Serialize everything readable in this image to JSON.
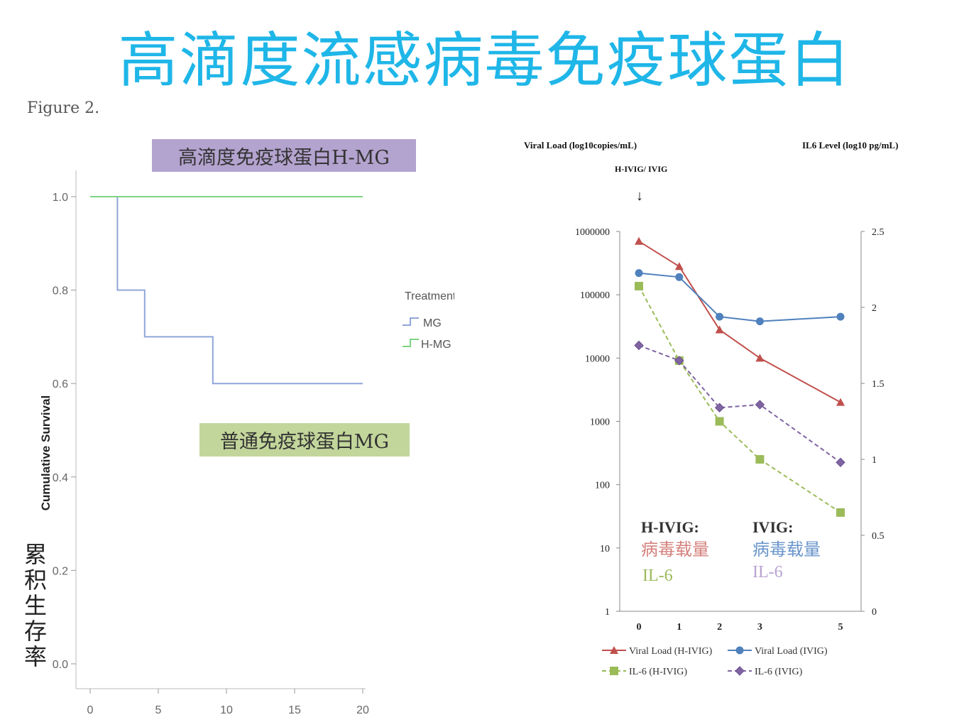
{
  "title": "高滴度流感病毒免疫球蛋白",
  "figure_label": "Figure 2.",
  "label_hmg": "高滴度免疫球蛋白H-MG",
  "label_mg": "普通免疫球蛋白MG",
  "y_label_cn_chars": [
    "累",
    "积",
    "生",
    "存",
    "率"
  ],
  "colors": {
    "title": "#1FB6E8",
    "mg": "#8FA6D9",
    "hmg": "#7FD383",
    "viral_hivig": "#C0504D",
    "viral_ivig": "#4F81BD",
    "il6_hivig": "#9BBB59",
    "il6_ivig": "#8064A2"
  },
  "chart_data": [
    {
      "type": "line",
      "subtype": "kaplan-meier step",
      "ylabel": "Cumulative Survival",
      "legend_title": "Treatment",
      "legend_placement": "right",
      "xlim": [
        0,
        20
      ],
      "ylim": [
        0.0,
        1.0
      ],
      "x_ticks": [
        "0",
        "5",
        "10",
        "15",
        "20"
      ],
      "y_ticks": [
        "0.0",
        "0.2",
        "0.4",
        "0.6",
        "0.8",
        "1.0"
      ],
      "series": [
        {
          "name": "MG",
          "steps": [
            [
              0,
              1.0
            ],
            [
              2,
              1.0
            ],
            [
              2,
              0.8
            ],
            [
              4,
              0.8
            ],
            [
              4,
              0.7
            ],
            [
              9,
              0.7
            ],
            [
              9,
              0.6
            ],
            [
              20,
              0.6
            ]
          ]
        },
        {
          "name": "H-MG",
          "steps": [
            [
              0,
              1.0
            ],
            [
              20,
              1.0
            ]
          ]
        }
      ]
    },
    {
      "type": "line",
      "ylabel_left": "Viral Load (log10copies/mL)",
      "ylabel_right": "IL6 Level (log10 pg/mL)",
      "annotation": "H-IVIG/ IVIG",
      "arrow": "↓",
      "x": [
        0,
        1,
        2,
        3,
        5
      ],
      "x_ticks": [
        "0",
        "1",
        "2",
        "3",
        "5"
      ],
      "y_left_scale": "log",
      "y_left_ticks": [
        "1",
        "10",
        "100",
        "1000",
        "10000",
        "100000",
        "1000000"
      ],
      "y_right_ticks": [
        "0",
        "0.5",
        "1",
        "1.5",
        "2",
        "2.5"
      ],
      "legend_placement": "bottom",
      "series": [
        {
          "name": "Viral Load  (H-IVIG)",
          "axis": "left",
          "marker": "triangle",
          "dashed": false,
          "values": [
            700000,
            280000,
            28000,
            10000,
            2000
          ]
        },
        {
          "name": "Viral Load (IVIG)",
          "axis": "left",
          "marker": "circle",
          "dashed": false,
          "values": [
            220000,
            190000,
            45000,
            38000,
            45000
          ]
        },
        {
          "name": "IL-6 (H-IVIG)",
          "axis": "right",
          "marker": "square",
          "dashed": true,
          "values": [
            2.14,
            1.65,
            1.25,
            1.0,
            0.65
          ]
        },
        {
          "name": "IL-6 (IVIG)",
          "axis": "right",
          "marker": "diamond",
          "dashed": true,
          "values": [
            1.75,
            1.65,
            1.34,
            1.36,
            0.98
          ]
        }
      ],
      "inset_legend": {
        "hivig_header": "H-IVIG:",
        "ivig_header": "IVIG:",
        "hivig_viral": "病毒载量",
        "hivig_il6": "IL-6",
        "ivig_viral": "病毒载量",
        "ivig_il6": "IL-6"
      }
    }
  ]
}
